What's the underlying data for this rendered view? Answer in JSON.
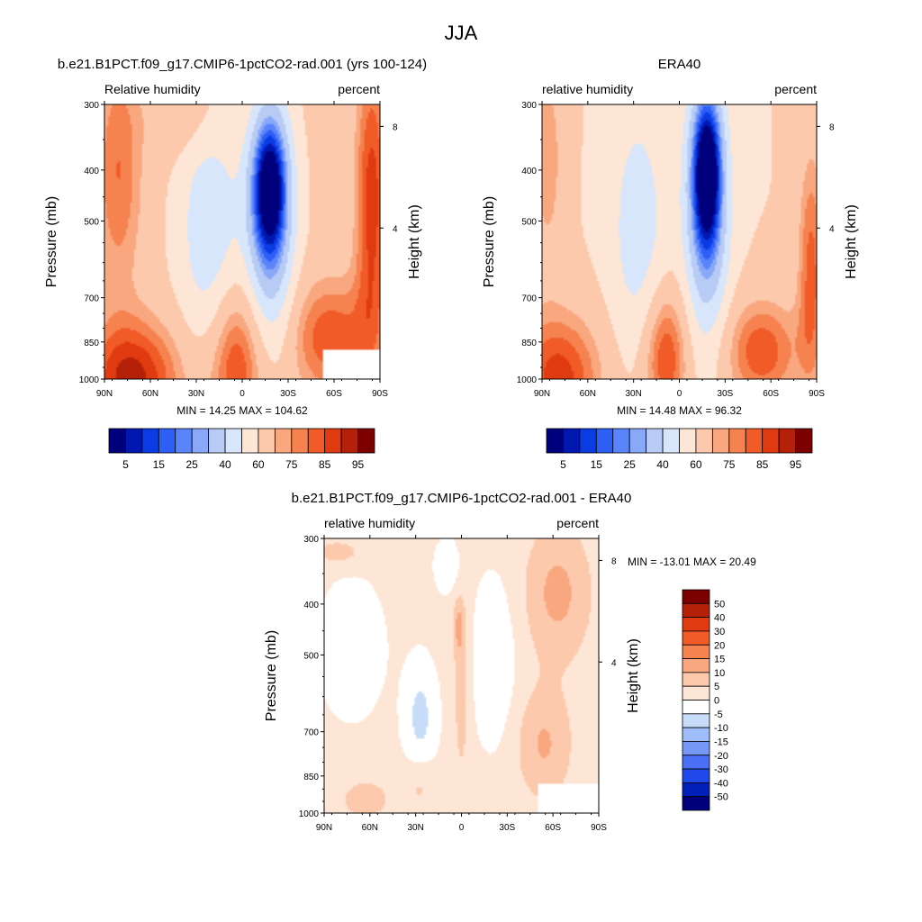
{
  "figure": {
    "title": "JJA",
    "colors": {
      "frame": "#000000",
      "background": "#ffffff"
    }
  },
  "chart_data": [
    {
      "type": "heatmap",
      "title": "b.e21.B1PCT.f09_g17.CMIP6-1pctCO2-rad.001 (yrs 100-124)",
      "left_label": "Relative humidity",
      "right_label": "percent",
      "ylabel": "Pressure (mb)",
      "ylabel_right": "Height (km)",
      "x_ticks": [
        "90N",
        "60N",
        "30N",
        "0",
        "30S",
        "60S",
        "90S"
      ],
      "y_ticks": [
        300,
        400,
        500,
        700,
        850,
        1000
      ],
      "y_scale": "log",
      "ylim": [
        1000,
        300
      ],
      "height_ticks": [
        8,
        4
      ],
      "min": 14.25,
      "max": 104.62,
      "stats_text": "MIN =  14.25  MAX = 104.62",
      "colorbar": {
        "orientation": "horizontal",
        "levels": [
          5,
          10,
          15,
          20,
          25,
          30,
          40,
          50,
          60,
          70,
          75,
          80,
          85,
          90,
          95
        ],
        "labels": [
          "5",
          "15",
          "25",
          "40",
          "60",
          "75",
          "85",
          "95"
        ],
        "colors": [
          "#00007d",
          "#0018b0",
          "#0b3be3",
          "#2d5ef5",
          "#5a85fa",
          "#89a8f7",
          "#b7cbf5",
          "#d8e6fb",
          "#fde6d5",
          "#fcc9ad",
          "#f9a77f",
          "#f6824f",
          "#f05b27",
          "#e03a10",
          "#b52008",
          "#7c0000"
        ]
      }
    },
    {
      "type": "heatmap",
      "title": "ERA40",
      "left_label": "relative humidity",
      "right_label": "percent",
      "ylabel": "Pressure (mb)",
      "ylabel_right": "Height (km)",
      "x_ticks": [
        "90N",
        "60N",
        "30N",
        "0",
        "30S",
        "60S",
        "90S"
      ],
      "y_ticks": [
        300,
        400,
        500,
        700,
        850,
        1000
      ],
      "y_scale": "log",
      "ylim": [
        1000,
        300
      ],
      "height_ticks": [
        8,
        4
      ],
      "min": 14.48,
      "max": 96.32,
      "stats_text": "MIN =  14.48  MAX =  96.32",
      "colorbar": {
        "orientation": "horizontal",
        "levels": [
          5,
          10,
          15,
          20,
          25,
          30,
          40,
          50,
          60,
          70,
          75,
          80,
          85,
          90,
          95
        ],
        "labels": [
          "5",
          "15",
          "25",
          "40",
          "60",
          "75",
          "85",
          "95"
        ],
        "colors": [
          "#00007d",
          "#0018b0",
          "#0b3be3",
          "#2d5ef5",
          "#5a85fa",
          "#89a8f7",
          "#b7cbf5",
          "#d8e6fb",
          "#fde6d5",
          "#fcc9ad",
          "#f9a77f",
          "#f6824f",
          "#f05b27",
          "#e03a10",
          "#b52008",
          "#7c0000"
        ]
      }
    },
    {
      "type": "heatmap",
      "title": "b.e21.B1PCT.f09_g17.CMIP6-1pctCO2-rad.001 - ERA40",
      "left_label": "relative humidity",
      "right_label": "percent",
      "ylabel": "Pressure (mb)",
      "ylabel_right": "Height (km)",
      "x_ticks": [
        "90N",
        "60N",
        "30N",
        "0",
        "30S",
        "60S",
        "90S"
      ],
      "y_ticks": [
        300,
        400,
        500,
        700,
        850,
        1000
      ],
      "y_scale": "log",
      "ylim": [
        1000,
        300
      ],
      "height_ticks": [
        8,
        4
      ],
      "min": -13.01,
      "max": 20.49,
      "stats_text": "MIN = -13.01  MAX =  20.49",
      "colorbar": {
        "orientation": "vertical",
        "levels": [
          50,
          40,
          30,
          20,
          15,
          10,
          5,
          0,
          -5,
          -10,
          -15,
          -20,
          -30,
          -40,
          -50
        ],
        "labels": [
          "50",
          "40",
          "30",
          "20",
          "15",
          "10",
          "5",
          "0",
          "-5",
          "-10",
          "-15",
          "-20",
          "-30",
          "-40",
          "-50"
        ],
        "colors": [
          "#7c0000",
          "#b52008",
          "#e03a10",
          "#f05b27",
          "#f6824f",
          "#f9a77f",
          "#fcc9ad",
          "#fde6d5",
          "#ffffff",
          "#c6dcf8",
          "#9fbdf8",
          "#7598f7",
          "#4a6ff4",
          "#1f49e8",
          "#0020b8",
          "#00007d"
        ]
      }
    }
  ]
}
